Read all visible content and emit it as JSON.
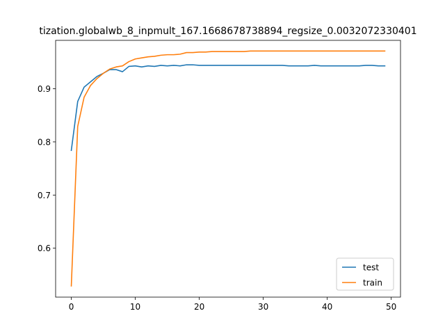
{
  "chart_data": {
    "type": "line",
    "title": "tization.globalwb_8_inpmult_167.1668678738894_regsize_0.0032072330401",
    "xlabel": "",
    "ylabel": "",
    "xlim": [
      -2.45,
      51.45
    ],
    "ylim": [
      0.508,
      0.991
    ],
    "xticks": [
      0,
      10,
      20,
      30,
      40,
      50
    ],
    "xtick_labels": [
      "0",
      "10",
      "20",
      "30",
      "40",
      "50"
    ],
    "yticks": [
      0.6,
      0.7,
      0.8,
      0.9
    ],
    "ytick_labels": [
      "0.6",
      "0.7",
      "0.8",
      "0.9"
    ],
    "grid": false,
    "legend_position": "lower-right",
    "x": [
      0,
      1,
      2,
      3,
      4,
      5,
      6,
      7,
      8,
      9,
      10,
      11,
      12,
      13,
      14,
      15,
      16,
      17,
      18,
      19,
      20,
      21,
      22,
      23,
      24,
      25,
      26,
      27,
      28,
      29,
      30,
      31,
      32,
      33,
      34,
      35,
      36,
      37,
      38,
      39,
      40,
      41,
      42,
      43,
      44,
      45,
      46,
      47,
      48,
      49
    ],
    "series": [
      {
        "name": "test",
        "color": "#1f77b4",
        "values": [
          0.784,
          0.876,
          0.903,
          0.913,
          0.923,
          0.929,
          0.936,
          0.936,
          0.932,
          0.942,
          0.943,
          0.941,
          0.943,
          0.942,
          0.944,
          0.943,
          0.944,
          0.943,
          0.945,
          0.945,
          0.944,
          0.944,
          0.944,
          0.944,
          0.944,
          0.944,
          0.944,
          0.944,
          0.944,
          0.944,
          0.944,
          0.944,
          0.944,
          0.944,
          0.943,
          0.943,
          0.943,
          0.943,
          0.944,
          0.943,
          0.943,
          0.943,
          0.943,
          0.943,
          0.943,
          0.943,
          0.944,
          0.944,
          0.943,
          0.943
        ]
      },
      {
        "name": "train",
        "color": "#ff7f0e",
        "values": [
          0.529,
          0.829,
          0.884,
          0.906,
          0.919,
          0.929,
          0.937,
          0.941,
          0.943,
          0.951,
          0.956,
          0.958,
          0.96,
          0.961,
          0.963,
          0.964,
          0.964,
          0.965,
          0.968,
          0.968,
          0.969,
          0.969,
          0.97,
          0.97,
          0.97,
          0.97,
          0.97,
          0.97,
          0.971,
          0.971,
          0.971,
          0.971,
          0.971,
          0.971,
          0.971,
          0.971,
          0.971,
          0.971,
          0.971,
          0.971,
          0.971,
          0.971,
          0.971,
          0.971,
          0.971,
          0.971,
          0.971,
          0.971,
          0.971,
          0.971
        ]
      }
    ]
  }
}
